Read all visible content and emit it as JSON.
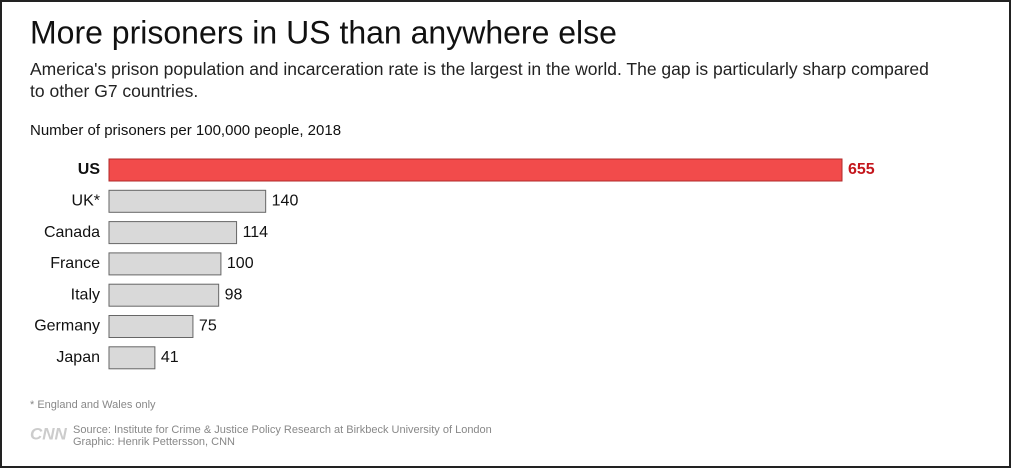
{
  "chart_data": {
    "type": "bar",
    "orientation": "horizontal",
    "title": "More prisoners in US than anywhere else",
    "subtitle": "America's prison population and incarceration rate is the largest in the world. The gap is particularly sharp compared to other G7 countries.",
    "axis_label": "Number of prisoners per 100,000 people, 2018",
    "categories": [
      "US",
      "UK*",
      "Canada",
      "France",
      "Italy",
      "Germany",
      "Japan"
    ],
    "values": [
      655,
      140,
      114,
      100,
      98,
      75,
      41
    ],
    "color": "#d9d9d9",
    "highlight_color": "#f24b4b",
    "highlight_label_color": "#c4161c",
    "highlight": [
      "US"
    ],
    "footnote": "* England and Wales only",
    "logo": "CNN",
    "source": "Source: Institute for Crime & Justice Policy Research at Birkbeck University of London",
    "credit": "Graphic: Henrik Pettersson, CNN"
  }
}
